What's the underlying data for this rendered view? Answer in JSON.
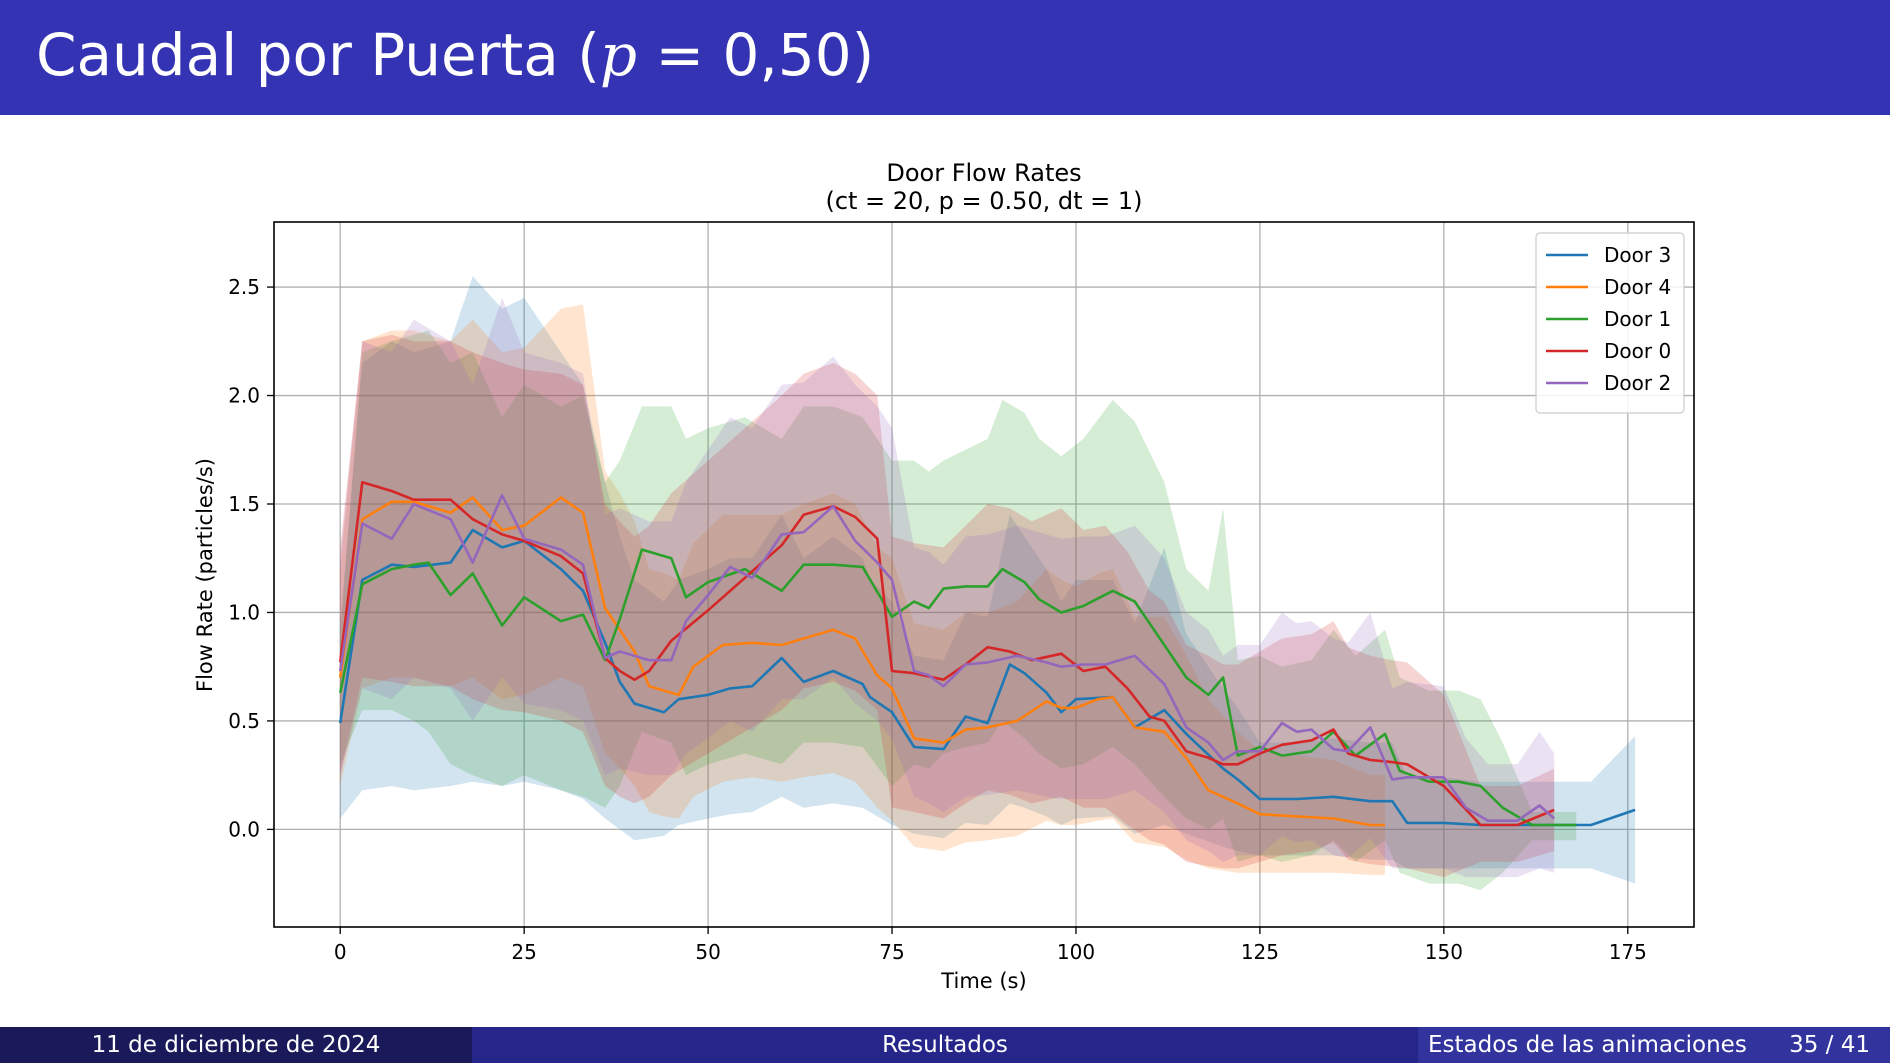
{
  "slide": {
    "title_main": "Caudal por Puerta (",
    "title_var": "p",
    "title_rest": " = 0,50)"
  },
  "footer": {
    "date": "11 de diciembre de 2024",
    "section": "Resultados",
    "subsection": "Estados de las animaciones",
    "page": "35 / 41"
  },
  "chart_data": {
    "type": "line",
    "title": "Door Flow Rates",
    "subtitle": "(ct = 20, p = 0.50, dt = 1)",
    "xlabel": "Time (s)",
    "ylabel": "Flow Rate (particles/s)",
    "xlim": [
      -9,
      184
    ],
    "ylim": [
      -0.45,
      2.8
    ],
    "xticks": [
      0,
      25,
      50,
      75,
      100,
      125,
      150,
      175
    ],
    "yticks": [
      0.0,
      0.5,
      1.0,
      1.5,
      2.0,
      2.5
    ],
    "grid": true,
    "legend_position": "top-right",
    "band": "shaded band around each series",
    "series": [
      {
        "name": "Door 3",
        "color": "#1f77b4",
        "x": [
          0,
          3,
          7,
          10,
          15,
          18,
          22,
          25,
          30,
          33,
          36,
          38,
          40,
          44,
          46,
          50,
          53,
          56,
          60,
          63,
          67,
          71,
          72,
          75,
          78,
          82,
          85,
          88,
          91,
          93,
          96,
          98,
          100,
          105,
          108,
          112,
          115,
          120,
          122,
          125,
          130,
          135,
          140,
          143,
          145,
          150,
          155,
          160,
          165,
          170,
          176
        ],
        "y": [
          0.49,
          1.15,
          1.22,
          1.21,
          1.23,
          1.38,
          1.3,
          1.33,
          1.2,
          1.1,
          0.86,
          0.68,
          0.58,
          0.54,
          0.6,
          0.62,
          0.65,
          0.66,
          0.79,
          0.68,
          0.73,
          0.67,
          0.61,
          0.54,
          0.38,
          0.37,
          0.52,
          0.49,
          0.76,
          0.72,
          0.63,
          0.54,
          0.6,
          0.61,
          0.47,
          0.55,
          0.44,
          0.28,
          0.23,
          0.14,
          0.14,
          0.15,
          0.13,
          0.13,
          0.03,
          0.03,
          0.02,
          0.02,
          0.02,
          0.02,
          0.09
        ],
        "lo": [
          0.05,
          0.18,
          0.2,
          0.18,
          0.2,
          0.22,
          0.2,
          0.22,
          0.18,
          0.14,
          0.05,
          0.0,
          -0.05,
          -0.03,
          0.02,
          0.05,
          0.07,
          0.08,
          0.15,
          0.1,
          0.12,
          0.1,
          0.08,
          0.02,
          -0.02,
          -0.04,
          0.03,
          0.02,
          0.12,
          0.1,
          0.06,
          0.02,
          0.05,
          0.06,
          -0.02,
          0.02,
          -0.02,
          -0.08,
          -0.1,
          -0.12,
          -0.12,
          -0.12,
          -0.14,
          -0.14,
          -0.18,
          -0.18,
          -0.18,
          -0.18,
          -0.18,
          -0.18,
          -0.25
        ],
        "hi": [
          0.95,
          2.15,
          2.25,
          2.2,
          2.25,
          2.55,
          2.4,
          2.45,
          2.2,
          2.05,
          1.6,
          1.35,
          1.15,
          1.05,
          1.15,
          1.2,
          1.25,
          1.25,
          1.45,
          1.25,
          1.35,
          1.25,
          1.15,
          1.05,
          0.8,
          0.78,
          1.0,
          0.98,
          1.45,
          1.35,
          1.2,
          1.05,
          1.15,
          1.15,
          0.95,
          1.3,
          0.9,
          0.65,
          0.56,
          0.4,
          0.4,
          0.42,
          0.4,
          0.4,
          0.24,
          0.24,
          0.22,
          0.22,
          0.22,
          0.22,
          0.43
        ]
      },
      {
        "name": "Door 4",
        "color": "#ff7f0e",
        "x": [
          0,
          3,
          7,
          10,
          15,
          18,
          22,
          25,
          30,
          33,
          36,
          38,
          40,
          42,
          44,
          46,
          48,
          52,
          56,
          60,
          63,
          67,
          70,
          73,
          75,
          78,
          82,
          85,
          88,
          92,
          96,
          98,
          100,
          103,
          105,
          108,
          112,
          115,
          118,
          122,
          125,
          130,
          135,
          140,
          142
        ],
        "y": [
          0.7,
          1.43,
          1.51,
          1.51,
          1.46,
          1.53,
          1.38,
          1.4,
          1.53,
          1.46,
          1.02,
          0.92,
          0.82,
          0.66,
          0.64,
          0.62,
          0.75,
          0.85,
          0.86,
          0.85,
          0.88,
          0.92,
          0.88,
          0.71,
          0.65,
          0.42,
          0.4,
          0.46,
          0.47,
          0.5,
          0.59,
          0.56,
          0.56,
          0.6,
          0.61,
          0.47,
          0.45,
          0.33,
          0.18,
          0.12,
          0.07,
          0.06,
          0.05,
          0.02,
          0.02
        ],
        "lo": [
          0.2,
          0.65,
          0.7,
          0.7,
          0.66,
          0.7,
          0.6,
          0.62,
          0.7,
          0.66,
          0.35,
          0.28,
          0.2,
          0.08,
          0.06,
          0.05,
          0.15,
          0.22,
          0.24,
          0.22,
          0.24,
          0.26,
          0.22,
          0.1,
          0.04,
          -0.08,
          -0.1,
          -0.06,
          -0.05,
          -0.03,
          0.04,
          0.02,
          0.02,
          0.04,
          0.05,
          -0.06,
          -0.08,
          -0.14,
          -0.18,
          -0.2,
          -0.2,
          -0.2,
          -0.2,
          -0.21,
          -0.21
        ],
        "hi": [
          1.2,
          2.25,
          2.3,
          2.3,
          2.25,
          2.35,
          2.2,
          2.22,
          2.4,
          2.42,
          1.65,
          1.55,
          1.42,
          1.2,
          1.18,
          1.15,
          1.32,
          1.45,
          1.45,
          1.45,
          1.5,
          1.55,
          1.5,
          1.3,
          1.25,
          0.95,
          0.92,
          1.0,
          1.0,
          1.05,
          1.2,
          1.15,
          1.12,
          1.18,
          1.2,
          0.98,
          0.98,
          0.8,
          0.6,
          0.45,
          0.36,
          0.34,
          0.32,
          0.25,
          0.25
        ]
      },
      {
        "name": "Door 1",
        "color": "#2ca02c",
        "x": [
          0,
          3,
          7,
          10,
          12,
          15,
          18,
          22,
          25,
          30,
          33,
          36,
          38,
          41,
          45,
          47,
          50,
          55,
          60,
          63,
          67,
          71,
          75,
          78,
          80,
          82,
          85,
          88,
          90,
          93,
          95,
          98,
          101,
          105,
          108,
          112,
          115,
          118,
          120,
          122,
          125,
          128,
          132,
          135,
          138,
          142,
          144,
          148,
          152,
          155,
          158,
          162,
          168
        ],
        "y": [
          0.63,
          1.13,
          1.2,
          1.22,
          1.23,
          1.08,
          1.18,
          0.94,
          1.07,
          0.96,
          0.99,
          0.78,
          0.97,
          1.29,
          1.25,
          1.07,
          1.14,
          1.2,
          1.1,
          1.22,
          1.22,
          1.21,
          0.98,
          1.05,
          1.02,
          1.11,
          1.12,
          1.12,
          1.2,
          1.14,
          1.06,
          1.0,
          1.03,
          1.1,
          1.05,
          0.85,
          0.7,
          0.62,
          0.7,
          0.34,
          0.38,
          0.34,
          0.36,
          0.45,
          0.34,
          0.44,
          0.27,
          0.22,
          0.22,
          0.2,
          0.1,
          0.02,
          0.02
        ],
        "lo": [
          0.3,
          0.55,
          0.55,
          0.5,
          0.45,
          0.3,
          0.25,
          0.2,
          0.25,
          0.18,
          0.15,
          0.1,
          0.2,
          0.45,
          0.4,
          0.25,
          0.3,
          0.35,
          0.3,
          0.4,
          0.4,
          0.38,
          0.2,
          0.3,
          0.28,
          0.35,
          0.38,
          0.4,
          0.5,
          0.42,
          0.35,
          0.28,
          0.3,
          0.38,
          0.3,
          0.15,
          0.05,
          0.0,
          0.05,
          -0.15,
          -0.12,
          -0.15,
          -0.12,
          -0.05,
          -0.15,
          -0.05,
          -0.2,
          -0.25,
          -0.25,
          -0.28,
          -0.2,
          -0.05,
          -0.05
        ],
        "hi": [
          0.9,
          2.2,
          2.25,
          2.28,
          2.3,
          2.15,
          2.2,
          1.9,
          2.05,
          1.95,
          2.0,
          1.6,
          1.7,
          1.95,
          1.95,
          1.8,
          1.85,
          1.9,
          1.8,
          1.95,
          1.95,
          1.9,
          1.7,
          1.7,
          1.65,
          1.7,
          1.75,
          1.8,
          1.98,
          1.92,
          1.8,
          1.72,
          1.8,
          1.98,
          1.88,
          1.6,
          1.2,
          1.1,
          1.48,
          0.78,
          0.8,
          0.75,
          0.78,
          0.92,
          0.8,
          0.92,
          0.7,
          0.64,
          0.64,
          0.6,
          0.4,
          0.08,
          0.08
        ]
      },
      {
        "name": "Door 0",
        "color": "#d62728",
        "x": [
          0,
          3,
          7,
          10,
          15,
          18,
          22,
          25,
          30,
          33,
          36,
          38,
          40,
          42,
          45,
          50,
          55,
          60,
          63,
          67,
          70,
          73,
          75,
          78,
          82,
          85,
          88,
          91,
          94,
          98,
          101,
          104,
          107,
          110,
          112,
          115,
          118,
          120,
          122,
          125,
          128,
          132,
          135,
          137,
          140,
          143,
          145,
          150,
          155,
          160,
          165
        ],
        "y": [
          0.77,
          1.6,
          1.56,
          1.52,
          1.52,
          1.43,
          1.36,
          1.33,
          1.26,
          1.18,
          0.79,
          0.73,
          0.69,
          0.73,
          0.87,
          1.01,
          1.16,
          1.31,
          1.45,
          1.49,
          1.44,
          1.34,
          0.73,
          0.72,
          0.69,
          0.76,
          0.84,
          0.82,
          0.78,
          0.81,
          0.73,
          0.75,
          0.65,
          0.52,
          0.5,
          0.36,
          0.33,
          0.3,
          0.3,
          0.35,
          0.39,
          0.41,
          0.46,
          0.35,
          0.32,
          0.31,
          0.3,
          0.2,
          0.02,
          0.02,
          0.09
        ],
        "lo": [
          0.25,
          0.7,
          0.68,
          0.66,
          0.66,
          0.6,
          0.55,
          0.54,
          0.5,
          0.45,
          0.2,
          0.15,
          0.12,
          0.15,
          0.25,
          0.35,
          0.45,
          0.55,
          0.65,
          0.68,
          0.64,
          0.55,
          0.1,
          0.08,
          0.05,
          0.12,
          0.18,
          0.16,
          0.12,
          0.15,
          0.1,
          0.1,
          0.02,
          -0.05,
          -0.07,
          -0.15,
          -0.17,
          -0.18,
          -0.18,
          -0.15,
          -0.12,
          -0.1,
          -0.06,
          -0.14,
          -0.16,
          -0.17,
          -0.18,
          -0.22,
          -0.15,
          -0.15,
          -0.1
        ],
        "hi": [
          1.3,
          2.25,
          2.28,
          2.25,
          2.25,
          2.2,
          2.15,
          2.12,
          2.1,
          2.05,
          1.5,
          1.42,
          1.35,
          1.4,
          1.55,
          1.7,
          1.85,
          2.0,
          2.1,
          2.15,
          2.1,
          2.0,
          1.35,
          1.32,
          1.3,
          1.4,
          1.5,
          1.48,
          1.42,
          1.48,
          1.38,
          1.4,
          1.28,
          1.1,
          1.05,
          0.85,
          0.8,
          0.76,
          0.76,
          0.82,
          0.88,
          0.9,
          0.96,
          0.84,
          0.8,
          0.78,
          0.77,
          0.62,
          0.2,
          0.2,
          0.28
        ]
      },
      {
        "name": "Door 2",
        "color": "#9467bd",
        "x": [
          0,
          3,
          7,
          10,
          15,
          18,
          22,
          25,
          30,
          33,
          36,
          38,
          42,
          45,
          47,
          50,
          53,
          56,
          60,
          63,
          67,
          70,
          73,
          75,
          78,
          80,
          82,
          85,
          88,
          92,
          96,
          98,
          101,
          104,
          108,
          112,
          115,
          118,
          120,
          122,
          125,
          128,
          130,
          132,
          135,
          137,
          140,
          143,
          145,
          150,
          153,
          156,
          160,
          163,
          165
        ],
        "y": [
          0.73,
          1.41,
          1.34,
          1.5,
          1.43,
          1.23,
          1.54,
          1.34,
          1.29,
          1.22,
          0.79,
          0.82,
          0.78,
          0.78,
          0.96,
          1.08,
          1.21,
          1.16,
          1.36,
          1.37,
          1.49,
          1.33,
          1.23,
          1.15,
          0.73,
          0.71,
          0.66,
          0.76,
          0.77,
          0.8,
          0.77,
          0.75,
          0.76,
          0.76,
          0.8,
          0.67,
          0.47,
          0.4,
          0.32,
          0.36,
          0.36,
          0.49,
          0.45,
          0.46,
          0.37,
          0.36,
          0.47,
          0.23,
          0.24,
          0.24,
          0.1,
          0.04,
          0.04,
          0.11,
          0.05
        ],
        "lo": [
          0.25,
          0.65,
          0.6,
          0.7,
          0.65,
          0.5,
          0.7,
          0.58,
          0.55,
          0.5,
          0.25,
          0.28,
          0.25,
          0.25,
          0.35,
          0.42,
          0.5,
          0.45,
          0.6,
          0.6,
          0.7,
          0.58,
          0.5,
          0.42,
          0.15,
          0.12,
          0.08,
          0.15,
          0.16,
          0.18,
          0.15,
          0.14,
          0.14,
          0.14,
          0.18,
          0.08,
          -0.05,
          -0.1,
          -0.15,
          -0.12,
          -0.12,
          -0.03,
          -0.06,
          -0.05,
          -0.12,
          -0.13,
          -0.04,
          -0.18,
          -0.18,
          -0.18,
          -0.22,
          -0.22,
          -0.22,
          -0.18,
          -0.2
        ],
        "hi": [
          1.25,
          2.25,
          2.2,
          2.35,
          2.25,
          2.05,
          2.45,
          2.2,
          2.15,
          2.1,
          1.45,
          1.48,
          1.42,
          1.42,
          1.6,
          1.75,
          1.9,
          1.85,
          2.05,
          2.06,
          2.18,
          2.05,
          1.95,
          1.85,
          1.3,
          1.28,
          1.22,
          1.35,
          1.36,
          1.4,
          1.36,
          1.34,
          1.35,
          1.35,
          1.4,
          1.25,
          1.0,
          0.92,
          0.8,
          0.85,
          0.85,
          1.0,
          0.95,
          0.96,
          0.88,
          0.86,
          1.0,
          0.65,
          0.68,
          0.66,
          0.42,
          0.3,
          0.3,
          0.45,
          0.35
        ]
      }
    ]
  }
}
